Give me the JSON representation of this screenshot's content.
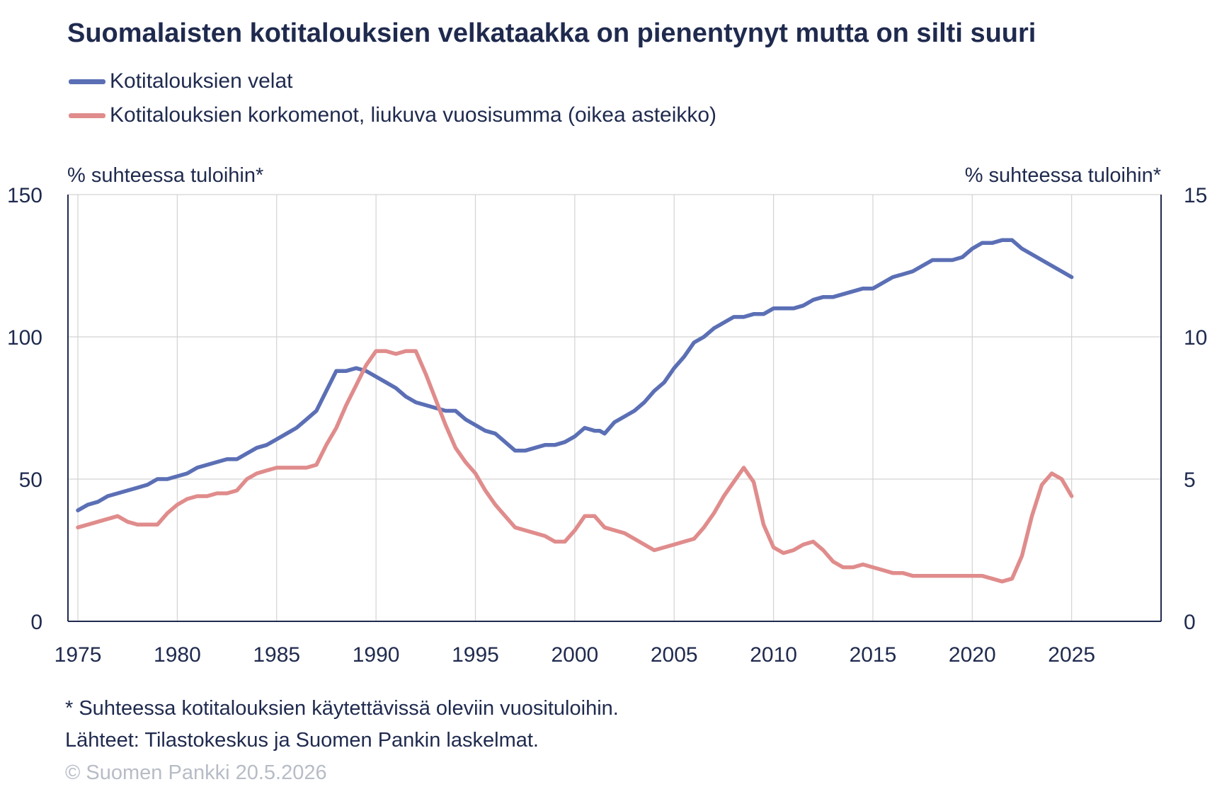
{
  "chart_data": {
    "type": "line",
    "title": "Suomalaisten kotitalouksien velkataakka on pienentynyt mutta on silti suuri",
    "ylabel_left": "% suhteessa tuloihin*",
    "ylabel_right": "% suhteessa tuloihin*",
    "xlim": [
      1974.5,
      2029.5
    ],
    "ylim_left": [
      0,
      150
    ],
    "ylim_right": [
      0,
      15
    ],
    "yticks_left": [
      0,
      50,
      100,
      150
    ],
    "yticks_right": [
      0,
      5,
      10,
      15
    ],
    "xticks": [
      1975,
      1980,
      1985,
      1990,
      1995,
      2000,
      2005,
      2010,
      2015,
      2020,
      2025
    ],
    "grid": true,
    "legend_position": "top-left",
    "series": [
      {
        "name": "Kotitalouksien velat",
        "axis": "left",
        "color": "#5b6fb5",
        "x": [
          1975.0,
          1975.5,
          1976.0,
          1976.5,
          1977.0,
          1977.5,
          1978.0,
          1978.5,
          1979.0,
          1979.5,
          1980.0,
          1980.5,
          1981.0,
          1981.5,
          1982.0,
          1982.5,
          1983.0,
          1983.5,
          1984.0,
          1984.5,
          1985.0,
          1985.5,
          1986.0,
          1986.5,
          1987.0,
          1987.5,
          1988.0,
          1988.5,
          1989.0,
          1989.5,
          1990.0,
          1990.5,
          1991.0,
          1991.5,
          1992.0,
          1992.5,
          1993.0,
          1993.5,
          1994.0,
          1994.5,
          1995.0,
          1995.5,
          1996.0,
          1996.5,
          1997.0,
          1997.5,
          1998.0,
          1998.5,
          1999.0,
          1999.5,
          2000.0,
          2000.5,
          2001.0,
          2001.25,
          2001.5,
          2002.0,
          2002.5,
          2003.0,
          2003.5,
          2004.0,
          2004.5,
          2005.0,
          2005.5,
          2006.0,
          2006.5,
          2007.0,
          2007.5,
          2008.0,
          2008.5,
          2009.0,
          2009.5,
          2010.0,
          2010.5,
          2011.0,
          2011.5,
          2012.0,
          2012.5,
          2013.0,
          2013.5,
          2014.0,
          2014.5,
          2015.0,
          2015.5,
          2016.0,
          2016.5,
          2017.0,
          2017.5,
          2018.0,
          2018.5,
          2019.0,
          2019.5,
          2020.0,
          2020.5,
          2021.0,
          2021.5,
          2022.0,
          2022.5,
          2023.0,
          2023.5,
          2024.0,
          2024.5,
          2025.0
        ],
        "values": [
          39,
          41,
          42,
          44,
          45,
          46,
          47,
          48,
          50,
          50,
          51,
          52,
          54,
          55,
          56,
          57,
          57,
          59,
          61,
          62,
          64,
          66,
          68,
          71,
          74,
          81,
          88,
          88,
          89,
          88,
          86,
          84,
          82,
          79,
          77,
          76,
          75,
          74,
          74,
          71,
          69,
          67,
          66,
          63,
          60,
          60,
          61,
          62,
          62,
          63,
          65,
          68,
          67,
          67,
          66,
          70,
          72,
          74,
          77,
          81,
          84,
          89,
          93,
          98,
          100,
          103,
          105,
          107,
          107,
          108,
          108,
          110,
          110,
          110,
          111,
          113,
          114,
          114,
          115,
          116,
          117,
          117,
          119,
          121,
          122,
          123,
          125,
          127,
          127,
          127,
          128,
          131,
          133,
          133,
          134,
          134,
          131,
          129,
          127,
          125,
          123,
          121
        ]
      },
      {
        "name": "Kotitalouksien korkomenot, liukuva vuosisumma (oikea asteikko)",
        "axis": "right",
        "color": "#e08c8c",
        "x": [
          1975.0,
          1975.5,
          1976.0,
          1976.5,
          1977.0,
          1977.5,
          1978.0,
          1978.5,
          1979.0,
          1979.5,
          1980.0,
          1980.5,
          1981.0,
          1981.5,
          1982.0,
          1982.5,
          1983.0,
          1983.5,
          1984.0,
          1984.5,
          1985.0,
          1985.5,
          1986.0,
          1986.5,
          1987.0,
          1987.5,
          1988.0,
          1988.5,
          1989.0,
          1989.5,
          1990.0,
          1990.5,
          1991.0,
          1991.5,
          1992.0,
          1992.5,
          1993.0,
          1993.5,
          1994.0,
          1994.5,
          1995.0,
          1995.5,
          1996.0,
          1996.5,
          1997.0,
          1997.5,
          1998.0,
          1998.5,
          1999.0,
          1999.5,
          2000.0,
          2000.5,
          2001.0,
          2001.5,
          2002.0,
          2002.5,
          2003.0,
          2003.5,
          2004.0,
          2004.5,
          2005.0,
          2005.5,
          2006.0,
          2006.5,
          2007.0,
          2007.5,
          2008.0,
          2008.5,
          2009.0,
          2009.5,
          2010.0,
          2010.5,
          2011.0,
          2011.5,
          2012.0,
          2012.5,
          2013.0,
          2013.5,
          2014.0,
          2014.5,
          2015.0,
          2015.5,
          2016.0,
          2016.5,
          2017.0,
          2017.5,
          2018.0,
          2018.5,
          2019.0,
          2019.5,
          2020.0,
          2020.5,
          2021.0,
          2021.5,
          2022.0,
          2022.5,
          2023.0,
          2023.5,
          2024.0,
          2024.5,
          2025.0
        ],
        "values": [
          3.3,
          3.4,
          3.5,
          3.6,
          3.7,
          3.5,
          3.4,
          3.4,
          3.4,
          3.8,
          4.1,
          4.3,
          4.4,
          4.4,
          4.5,
          4.5,
          4.6,
          5.0,
          5.2,
          5.3,
          5.4,
          5.4,
          5.4,
          5.4,
          5.5,
          6.2,
          6.8,
          7.6,
          8.3,
          9.0,
          9.5,
          9.5,
          9.4,
          9.5,
          9.5,
          8.7,
          7.8,
          6.9,
          6.1,
          5.6,
          5.2,
          4.6,
          4.1,
          3.7,
          3.3,
          3.2,
          3.1,
          3.0,
          2.8,
          2.8,
          3.2,
          3.7,
          3.7,
          3.3,
          3.2,
          3.1,
          2.9,
          2.7,
          2.5,
          2.6,
          2.7,
          2.8,
          2.9,
          3.3,
          3.8,
          4.4,
          4.9,
          5.4,
          4.9,
          3.4,
          2.6,
          2.4,
          2.5,
          2.7,
          2.8,
          2.5,
          2.1,
          1.9,
          1.9,
          2.0,
          1.9,
          1.8,
          1.7,
          1.7,
          1.6,
          1.6,
          1.6,
          1.6,
          1.6,
          1.6,
          1.6,
          1.6,
          1.5,
          1.4,
          1.5,
          2.3,
          3.7,
          4.8,
          5.2,
          5.0,
          4.4
        ]
      }
    ]
  },
  "footnotes": [
    "* Suhteessa kotitalouksien käytettävissä oleviin vuosituloihin.",
    "Lähteet: Tilastokeskus ja Suomen Pankin laskelmat."
  ],
  "copyright": "© Suomen Pankki 20.5.2026",
  "colors": {
    "axis": "#1f2a4e",
    "grid": "#d3d3d3",
    "copyright": "#b7bcc6"
  }
}
